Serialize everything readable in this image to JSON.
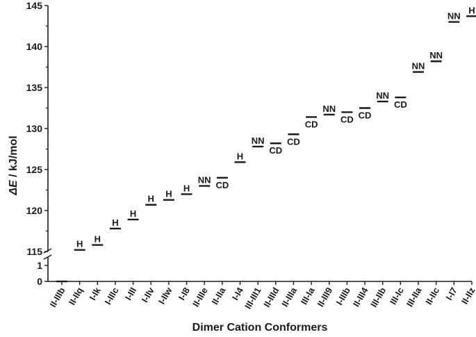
{
  "chart_data": {
    "type": "scatter",
    "xlabel": "Dimer Cation Conformers",
    "ylabel_symbol": "ΔE",
    "ylabel_units": " / kJ/mol",
    "ylim_upper": [
      115,
      145
    ],
    "ylim_lower": [
      0,
      1
    ],
    "y_ticks_upper": [
      115,
      120,
      125,
      130,
      135,
      140,
      145
    ],
    "y_ticks_lower": [
      0,
      1
    ],
    "categories": [
      "II-IIIb",
      "II-IIq",
      "I-Ik",
      "I-IIIc",
      "I-III",
      "I-IIv",
      "I-IIw",
      "I-I8",
      "II-IIIe",
      "II-IIa",
      "I-I4",
      "III-III1",
      "II-IIId",
      "II-IIIa",
      "III-Ia",
      "II-III9",
      "I-IIIb",
      "II-III4",
      "III-IIb",
      "III-Ic",
      "III-IIa",
      "II-IIc",
      "I-I7",
      "II-IIz"
    ],
    "points": [
      {
        "category": "II-IIIb",
        "value": 0,
        "label": ""
      },
      {
        "category": "II-IIq",
        "value": 115.2,
        "label": "H"
      },
      {
        "category": "I-Ik",
        "value": 115.8,
        "label": "H"
      },
      {
        "category": "I-IIIc",
        "value": 117.8,
        "label": "H"
      },
      {
        "category": "I-III",
        "value": 118.9,
        "label": "H"
      },
      {
        "category": "I-IIv",
        "value": 120.7,
        "label": "H"
      },
      {
        "category": "I-IIw",
        "value": 121.3,
        "label": "H"
      },
      {
        "category": "I-I8",
        "value": 122.0,
        "label": "H"
      },
      {
        "category": "II-IIIe",
        "value": 123.0,
        "label": "NN"
      },
      {
        "category": "II-IIa",
        "value": 124.0,
        "label": "CD"
      },
      {
        "category": "I-I4",
        "value": 125.9,
        "label": "H"
      },
      {
        "category": "III-III1",
        "value": 127.8,
        "label": "NN"
      },
      {
        "category": "II-IIId",
        "value": 128.2,
        "label": "CD"
      },
      {
        "category": "II-IIIa",
        "value": 129.3,
        "label": "CD"
      },
      {
        "category": "III-Ia",
        "value": 131.4,
        "label": "CD"
      },
      {
        "category": "II-III9",
        "value": 131.7,
        "label": "NN"
      },
      {
        "category": "I-IIIb",
        "value": 132.0,
        "label": "CD"
      },
      {
        "category": "II-III4",
        "value": 132.5,
        "label": "CD"
      },
      {
        "category": "III-IIb",
        "value": 133.3,
        "label": "NN"
      },
      {
        "category": "III-Ic",
        "value": 133.8,
        "label": "CD"
      },
      {
        "category": "III-IIa",
        "value": 136.9,
        "label": "NN"
      },
      {
        "category": "II-IIc",
        "value": 138.2,
        "label": "NN"
      },
      {
        "category": "I-I7",
        "value": 143.0,
        "label": "NN"
      },
      {
        "category": "II-IIz",
        "value": 143.7,
        "label": "H"
      }
    ],
    "axis_break": true,
    "grid": false,
    "legend": "none"
  }
}
